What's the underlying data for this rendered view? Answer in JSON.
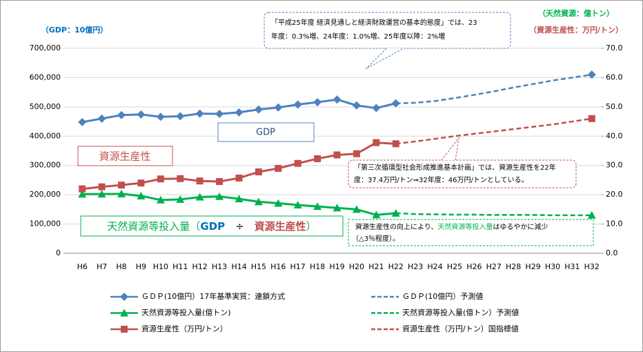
{
  "chart_data": {
    "type": "line",
    "axis_labels": {
      "y": "（GDP：10億円）",
      "y2_top": "（天然資源：億トン）",
      "y2_bottom": "（資源生産性：万円/トン）"
    },
    "categories": [
      "H6",
      "H7",
      "H8",
      "H9",
      "H10",
      "H11",
      "H12",
      "H13",
      "H14",
      "H15",
      "H16",
      "H17",
      "H18",
      "H19",
      "H20",
      "H21",
      "H22",
      "H23",
      "H24",
      "H25",
      "H26",
      "H27",
      "H28",
      "H29",
      "H30",
      "H31",
      "H32"
    ],
    "ylim": [
      0,
      700000
    ],
    "yticks": [
      0,
      {
        "value": 100000,
        "label": "100,000"
      },
      {
        "value": 200000,
        "label": "200,000"
      },
      {
        "value": 300000,
        "label": "300,000"
      },
      {
        "value": 400000,
        "label": "400,000"
      },
      {
        "value": 500000,
        "label": "500,000"
      },
      {
        "value": 600000,
        "label": "600,000"
      },
      {
        "value": 700000,
        "label": "700,000"
      }
    ],
    "y2lim": [
      0,
      70
    ],
    "y2ticks": [
      {
        "value": 0,
        "label": "0.0"
      },
      {
        "value": 10,
        "label": "10.0"
      },
      {
        "value": 20,
        "label": "20.0"
      },
      {
        "value": 30,
        "label": "30.0"
      },
      {
        "value": 40,
        "label": "40.0"
      },
      {
        "value": 50,
        "label": "50.0"
      },
      {
        "value": 60,
        "label": "60.0"
      },
      {
        "value": 70,
        "label": "70.0"
      }
    ],
    "grid": true,
    "series": [
      {
        "name": "ＧＤＰ(10億円）17年基準実質：連鎖方式",
        "color": "#4f81bd",
        "marker": "diamond",
        "dashed": false,
        "axis": "y",
        "values": [
          448000,
          460000,
          472000,
          474000,
          466000,
          468000,
          477000,
          476000,
          481000,
          491000,
          498000,
          508000,
          516000,
          525000,
          505000,
          496000,
          512000,
          null,
          null,
          null,
          null,
          null,
          null,
          null,
          null,
          null,
          null
        ]
      },
      {
        "name": "ＧＤＰ(10億円）予測値",
        "color": "#4f81bd",
        "marker": "diamond",
        "dashed": true,
        "axis": "y",
        "values": [
          null,
          null,
          null,
          null,
          null,
          null,
          null,
          null,
          null,
          null,
          null,
          null,
          null,
          null,
          null,
          null,
          512000,
          514000,
          520000,
          530000,
          541000,
          553000,
          566000,
          578000,
          590000,
          600000,
          610000
        ]
      },
      {
        "name": "天然資源等投入量(億トン)",
        "color": "#00b050",
        "marker": "triangle",
        "dashed": false,
        "axis": "y2",
        "values": [
          20.2,
          20.2,
          20.3,
          19.6,
          18.2,
          18.4,
          19.2,
          19.4,
          18.6,
          17.6,
          17.1,
          16.5,
          16.0,
          15.5,
          15.0,
          13.1,
          13.7,
          null,
          null,
          null,
          null,
          null,
          null,
          null,
          null,
          null,
          null
        ]
      },
      {
        "name": "天然資源等投入量(億トン）予測値",
        "color": "#00b050",
        "marker": "triangle",
        "dashed": true,
        "axis": "y2",
        "values": [
          null,
          null,
          null,
          null,
          null,
          null,
          null,
          null,
          null,
          null,
          null,
          null,
          null,
          null,
          null,
          null,
          13.7,
          13.4,
          13.3,
          13.2,
          13.2,
          13.1,
          13.1,
          13.1,
          13.0,
          13.0,
          13.0
        ]
      },
      {
        "name": "資源生産性（万円/トン）",
        "color": "#c0504d",
        "marker": "square",
        "dashed": false,
        "axis": "y2",
        "values": [
          22.0,
          22.7,
          23.3,
          24.0,
          25.4,
          25.5,
          24.7,
          24.5,
          25.7,
          27.8,
          29.0,
          30.7,
          32.3,
          33.6,
          34.0,
          37.8,
          37.4,
          null,
          null,
          null,
          null,
          null,
          null,
          null,
          null,
          null,
          null
        ]
      },
      {
        "name": "資源生産性（万円/トン）国指標値",
        "color": "#c0504d",
        "marker": "square",
        "dashed": true,
        "axis": "y2",
        "values": [
          null,
          null,
          null,
          null,
          null,
          null,
          null,
          null,
          null,
          null,
          null,
          null,
          null,
          null,
          null,
          null,
          37.4,
          38.2,
          39.1,
          40.0,
          40.8,
          41.6,
          42.4,
          43.2,
          44.0,
          45.0,
          46.0
        ]
      }
    ],
    "annotations": {
      "top_note": [
        "「平成25年度 経済見通しと経済財政運営の基本的態度」では、23",
        "年度：0.3%増、24年度：1.0%増、25年度以降：2%増"
      ],
      "gdp_box": "GDP",
      "productivity_box": "資源生産性",
      "input_box": [
        "天然資源等投入量（",
        "GDP",
        "　÷　",
        "資源生産性",
        "）"
      ],
      "plan_note": [
        "「第三次循環型社会形成推進基本計画」では、資源生産性を22年",
        "度：37.4万円/トン⇒32年度：46万円/トンとしている。"
      ],
      "decrease_note": [
        "資源生産性の向上により、",
        "天然資源等投入量",
        "はゆるやかに減少",
        "（△3％程度）。"
      ]
    }
  }
}
